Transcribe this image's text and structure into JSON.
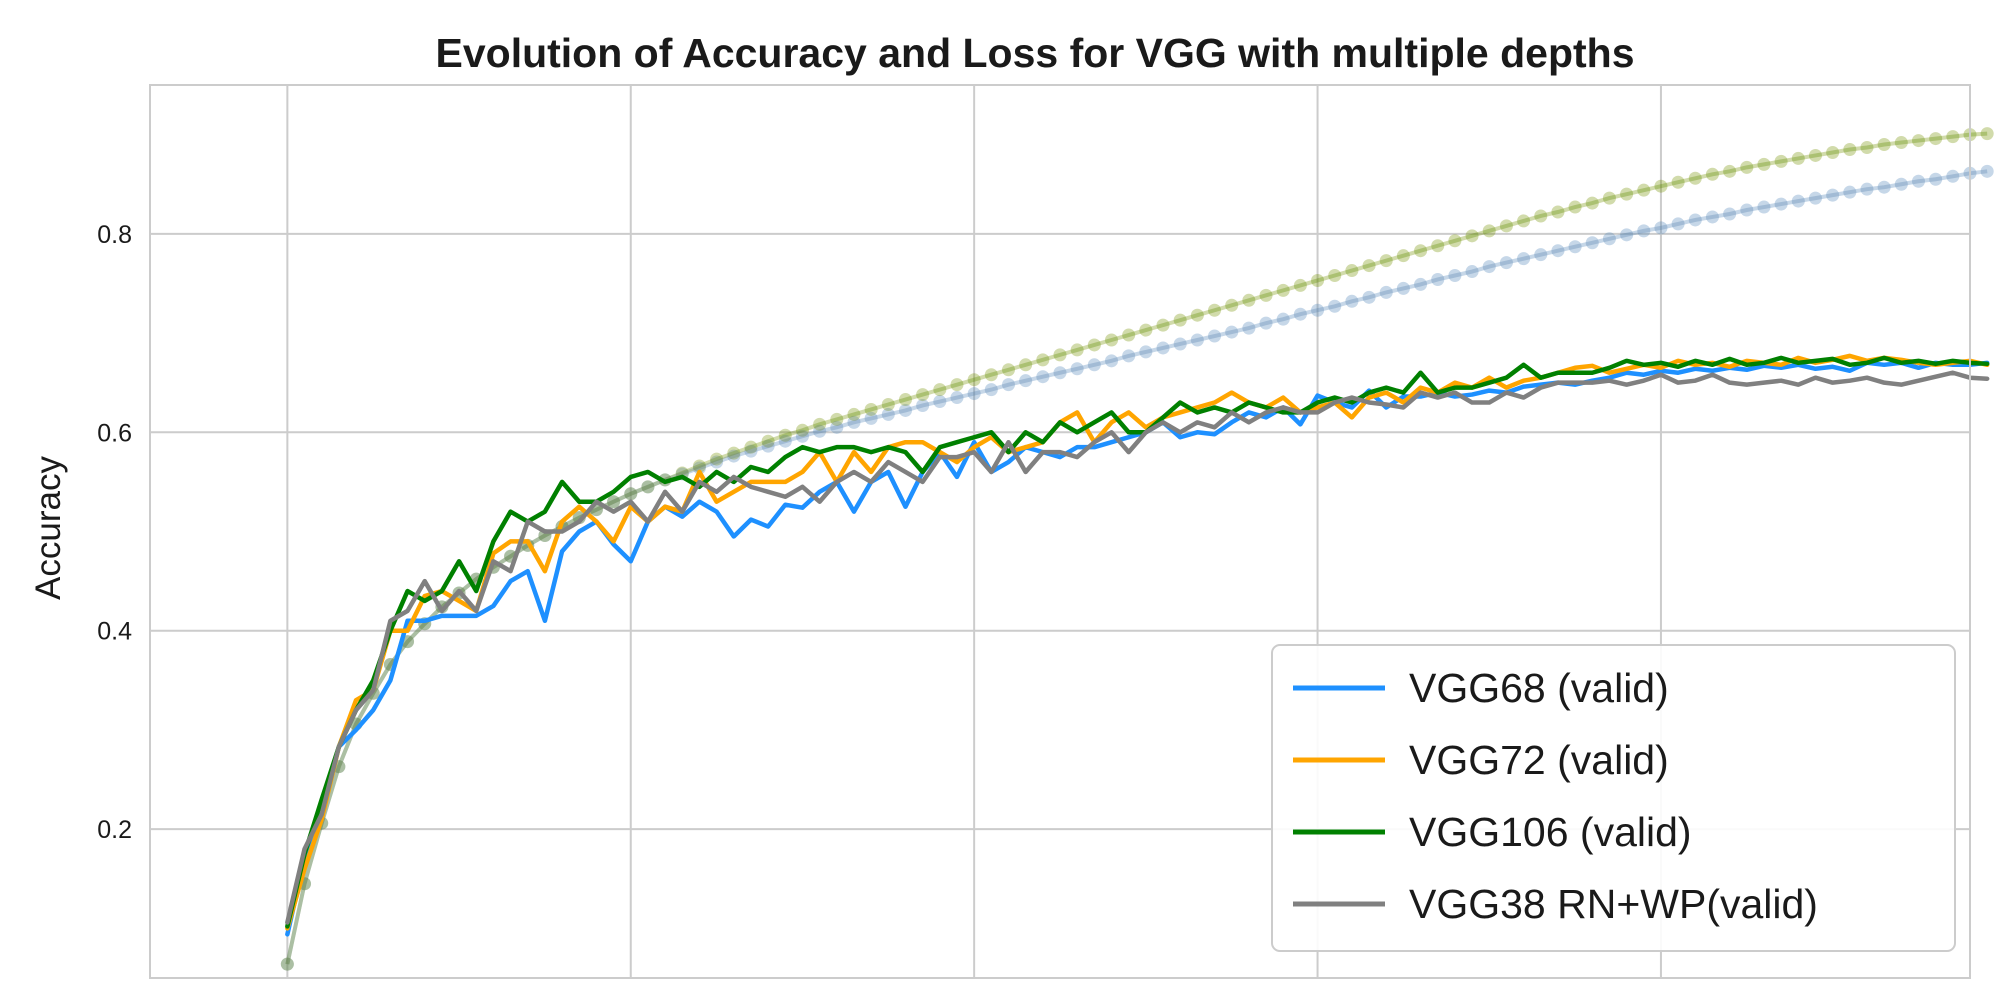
{
  "chart_data": {
    "type": "line",
    "title": "Evolution of Accuracy and Loss for VGG with multiple depths",
    "xlabel": "",
    "ylabel": "Accuracy",
    "ylim": [
      0.05,
      0.95
    ],
    "xlim": [
      -8,
      98
    ],
    "yticks": [
      0.2,
      0.4,
      0.6,
      0.8
    ],
    "xtick_count": 6,
    "grid": true,
    "legend_position": "lower-right",
    "series": [
      {
        "name": "VGG68 (valid)",
        "color": "#1E90FF",
        "values": [
          0.094,
          0.17,
          0.214,
          0.283,
          0.3,
          0.32,
          0.35,
          0.41,
          0.41,
          0.415,
          0.415,
          0.415,
          0.425,
          0.45,
          0.46,
          0.41,
          0.48,
          0.5,
          0.51,
          0.487,
          0.47,
          0.51,
          0.525,
          0.515,
          0.53,
          0.52,
          0.495,
          0.512,
          0.505,
          0.527,
          0.524,
          0.54,
          0.55,
          0.52,
          0.55,
          0.56,
          0.525,
          0.56,
          0.58,
          0.555,
          0.59,
          0.56,
          0.57,
          0.585,
          0.58,
          0.575,
          0.585,
          0.585,
          0.59,
          0.595,
          0.6,
          0.61,
          0.595,
          0.6,
          0.598,
          0.61,
          0.62,
          0.615,
          0.625,
          0.608,
          0.637,
          0.63,
          0.625,
          0.642,
          0.625,
          0.636,
          0.636,
          0.64,
          0.636,
          0.638,
          0.642,
          0.64,
          0.646,
          0.648,
          0.65,
          0.648,
          0.652,
          0.655,
          0.66,
          0.658,
          0.662,
          0.66,
          0.664,
          0.662,
          0.665,
          0.663,
          0.667,
          0.665,
          0.668,
          0.664,
          0.666,
          0.662,
          0.67,
          0.668,
          0.67,
          0.665,
          0.67,
          0.668,
          0.668,
          0.67
        ]
      },
      {
        "name": "VGG72 (valid)",
        "color": "#FFA500",
        "values": [
          0.1,
          0.16,
          0.21,
          0.283,
          0.33,
          0.34,
          0.4,
          0.4,
          0.435,
          0.44,
          0.43,
          0.42,
          0.478,
          0.49,
          0.49,
          0.46,
          0.51,
          0.525,
          0.51,
          0.49,
          0.525,
          0.51,
          0.525,
          0.52,
          0.56,
          0.53,
          0.54,
          0.55,
          0.55,
          0.55,
          0.56,
          0.58,
          0.55,
          0.58,
          0.56,
          0.585,
          0.59,
          0.59,
          0.58,
          0.57,
          0.585,
          0.595,
          0.58,
          0.585,
          0.59,
          0.61,
          0.62,
          0.59,
          0.61,
          0.62,
          0.605,
          0.615,
          0.62,
          0.625,
          0.63,
          0.64,
          0.63,
          0.625,
          0.635,
          0.62,
          0.625,
          0.63,
          0.615,
          0.635,
          0.64,
          0.63,
          0.645,
          0.64,
          0.65,
          0.645,
          0.655,
          0.645,
          0.652,
          0.655,
          0.66,
          0.665,
          0.667,
          0.66,
          0.664,
          0.668,
          0.665,
          0.672,
          0.668,
          0.67,
          0.666,
          0.672,
          0.67,
          0.668,
          0.675,
          0.67,
          0.673,
          0.677,
          0.672,
          0.675,
          0.673,
          0.67,
          0.668,
          0.67,
          0.672,
          0.668
        ]
      },
      {
        "name": "VGG106 (valid)",
        "color": "#008000",
        "values": [
          0.102,
          0.175,
          0.23,
          0.283,
          0.32,
          0.35,
          0.4,
          0.44,
          0.43,
          0.44,
          0.47,
          0.44,
          0.49,
          0.52,
          0.51,
          0.52,
          0.55,
          0.53,
          0.53,
          0.54,
          0.555,
          0.56,
          0.55,
          0.555,
          0.545,
          0.56,
          0.55,
          0.565,
          0.56,
          0.575,
          0.585,
          0.58,
          0.585,
          0.585,
          0.58,
          0.585,
          0.58,
          0.56,
          0.585,
          0.59,
          0.595,
          0.6,
          0.58,
          0.6,
          0.59,
          0.61,
          0.6,
          0.61,
          0.62,
          0.6,
          0.6,
          0.615,
          0.63,
          0.62,
          0.625,
          0.62,
          0.63,
          0.625,
          0.62,
          0.62,
          0.63,
          0.635,
          0.63,
          0.64,
          0.645,
          0.64,
          0.66,
          0.64,
          0.645,
          0.645,
          0.65,
          0.655,
          0.668,
          0.655,
          0.66,
          0.66,
          0.66,
          0.665,
          0.672,
          0.668,
          0.67,
          0.666,
          0.672,
          0.668,
          0.674,
          0.668,
          0.67,
          0.675,
          0.67,
          0.672,
          0.674,
          0.668,
          0.67,
          0.675,
          0.67,
          0.672,
          0.669,
          0.672,
          0.67,
          0.669
        ]
      },
      {
        "name": "VGG38 RN+WP(valid)",
        "color": "#808080",
        "values": [
          0.106,
          0.18,
          0.215,
          0.283,
          0.32,
          0.34,
          0.41,
          0.42,
          0.45,
          0.42,
          0.44,
          0.42,
          0.47,
          0.46,
          0.51,
          0.5,
          0.5,
          0.51,
          0.53,
          0.52,
          0.53,
          0.51,
          0.54,
          0.52,
          0.55,
          0.54,
          0.555,
          0.545,
          0.54,
          0.535,
          0.545,
          0.53,
          0.55,
          0.56,
          0.55,
          0.57,
          0.56,
          0.55,
          0.575,
          0.575,
          0.58,
          0.56,
          0.59,
          0.56,
          0.58,
          0.58,
          0.575,
          0.59,
          0.6,
          0.58,
          0.6,
          0.61,
          0.6,
          0.61,
          0.605,
          0.62,
          0.61,
          0.62,
          0.625,
          0.62,
          0.62,
          0.63,
          0.635,
          0.63,
          0.628,
          0.625,
          0.64,
          0.635,
          0.64,
          0.63,
          0.63,
          0.64,
          0.635,
          0.645,
          0.65,
          0.65,
          0.65,
          0.652,
          0.648,
          0.652,
          0.658,
          0.65,
          0.652,
          0.658,
          0.65,
          0.648,
          0.65,
          0.652,
          0.648,
          0.655,
          0.65,
          0.652,
          0.655,
          0.65,
          0.648,
          0.652,
          0.656,
          0.66,
          0.655,
          0.654
        ]
      }
    ],
    "faded_series": [
      {
        "color": "#1E90FF",
        "values": [
          0.064,
          0.145,
          0.206,
          0.263,
          0.306,
          0.337,
          0.366,
          0.389,
          0.407,
          0.424,
          0.438,
          0.452,
          0.464,
          0.475,
          0.486,
          0.496,
          0.505,
          0.514,
          0.522,
          0.53,
          0.538,
          0.545,
          0.552,
          0.558,
          0.564,
          0.57,
          0.576,
          0.581,
          0.586,
          0.591,
          0.596,
          0.601,
          0.605,
          0.61,
          0.614,
          0.618,
          0.622,
          0.627,
          0.631,
          0.635,
          0.639,
          0.643,
          0.648,
          0.652,
          0.656,
          0.66,
          0.664,
          0.668,
          0.672,
          0.677,
          0.681,
          0.685,
          0.689,
          0.693,
          0.697,
          0.701,
          0.705,
          0.71,
          0.714,
          0.719,
          0.723,
          0.727,
          0.732,
          0.736,
          0.741,
          0.745,
          0.749,
          0.754,
          0.758,
          0.762,
          0.767,
          0.771,
          0.775,
          0.779,
          0.783,
          0.787,
          0.791,
          0.795,
          0.799,
          0.803,
          0.806,
          0.81,
          0.814,
          0.817,
          0.82,
          0.824,
          0.827,
          0.83,
          0.833,
          0.836,
          0.839,
          0.842,
          0.845,
          0.847,
          0.85,
          0.853,
          0.855,
          0.858,
          0.861,
          0.863
        ]
      },
      {
        "color": "#FFA500",
        "values": [
          0.064,
          0.145,
          0.206,
          0.263,
          0.306,
          0.337,
          0.366,
          0.389,
          0.407,
          0.424,
          0.438,
          0.452,
          0.464,
          0.475,
          0.486,
          0.496,
          0.505,
          0.514,
          0.522,
          0.53,
          0.538,
          0.545,
          0.552,
          0.559,
          0.566,
          0.573,
          0.579,
          0.585,
          0.591,
          0.597,
          0.602,
          0.608,
          0.613,
          0.618,
          0.623,
          0.628,
          0.633,
          0.638,
          0.643,
          0.648,
          0.653,
          0.658,
          0.663,
          0.668,
          0.673,
          0.678,
          0.683,
          0.688,
          0.693,
          0.698,
          0.703,
          0.708,
          0.713,
          0.718,
          0.723,
          0.728,
          0.733,
          0.738,
          0.743,
          0.748,
          0.753,
          0.758,
          0.763,
          0.768,
          0.773,
          0.778,
          0.783,
          0.788,
          0.793,
          0.798,
          0.803,
          0.808,
          0.813,
          0.818,
          0.822,
          0.827,
          0.831,
          0.836,
          0.84,
          0.844,
          0.848,
          0.852,
          0.856,
          0.86,
          0.863,
          0.867,
          0.87,
          0.873,
          0.876,
          0.879,
          0.882,
          0.885,
          0.887,
          0.89,
          0.892,
          0.894,
          0.896,
          0.898,
          0.9,
          0.901
        ]
      },
      {
        "color": "#008000",
        "values": [
          0.064,
          0.145,
          0.206,
          0.263,
          0.306,
          0.337,
          0.366,
          0.389,
          0.407,
          0.424,
          0.438,
          0.452,
          0.464,
          0.475,
          0.486,
          0.496,
          0.505,
          0.514,
          0.522,
          0.53,
          0.538,
          0.545,
          0.552,
          0.559,
          0.566,
          0.573,
          0.579,
          0.585,
          0.591,
          0.597,
          0.602,
          0.608,
          0.613,
          0.618,
          0.623,
          0.628,
          0.633,
          0.638,
          0.643,
          0.648,
          0.653,
          0.658,
          0.663,
          0.668,
          0.673,
          0.678,
          0.683,
          0.688,
          0.693,
          0.698,
          0.703,
          0.708,
          0.713,
          0.718,
          0.723,
          0.728,
          0.733,
          0.738,
          0.743,
          0.748,
          0.753,
          0.758,
          0.763,
          0.768,
          0.773,
          0.778,
          0.783,
          0.788,
          0.793,
          0.798,
          0.803,
          0.808,
          0.813,
          0.818,
          0.822,
          0.827,
          0.831,
          0.836,
          0.84,
          0.844,
          0.848,
          0.852,
          0.856,
          0.86,
          0.863,
          0.867,
          0.87,
          0.873,
          0.876,
          0.879,
          0.882,
          0.885,
          0.887,
          0.89,
          0.892,
          0.894,
          0.896,
          0.898,
          0.9,
          0.901
        ]
      },
      {
        "color": "#808080",
        "values": [
          0.064,
          0.145,
          0.206,
          0.263,
          0.306,
          0.337,
          0.366,
          0.389,
          0.407,
          0.424,
          0.438,
          0.452,
          0.464,
          0.475,
          0.486,
          0.496,
          0.505,
          0.514,
          0.522,
          0.53,
          0.538,
          0.545,
          0.552,
          0.558,
          0.564,
          0.57,
          0.576,
          0.581,
          0.586,
          0.591,
          0.596,
          0.601,
          0.605,
          0.61,
          0.614,
          0.618,
          0.622,
          0.627,
          0.631,
          0.635,
          0.639,
          0.643,
          0.648,
          0.652,
          0.656,
          0.66,
          0.664,
          0.668,
          0.672,
          0.677,
          0.681,
          0.685,
          0.689,
          0.693,
          0.697,
          0.701,
          0.705,
          0.71,
          0.714,
          0.719,
          0.723,
          0.727,
          0.732,
          0.736,
          0.741,
          0.745,
          0.749,
          0.754,
          0.758,
          0.762,
          0.767,
          0.771,
          0.775,
          0.779,
          0.783,
          0.787,
          0.791,
          0.795,
          0.799,
          0.803,
          0.806,
          0.81,
          0.814,
          0.817,
          0.82,
          0.824,
          0.827,
          0.83,
          0.833,
          0.836,
          0.839,
          0.842,
          0.845,
          0.847,
          0.85,
          0.853,
          0.855,
          0.858,
          0.861,
          0.863
        ]
      }
    ]
  }
}
